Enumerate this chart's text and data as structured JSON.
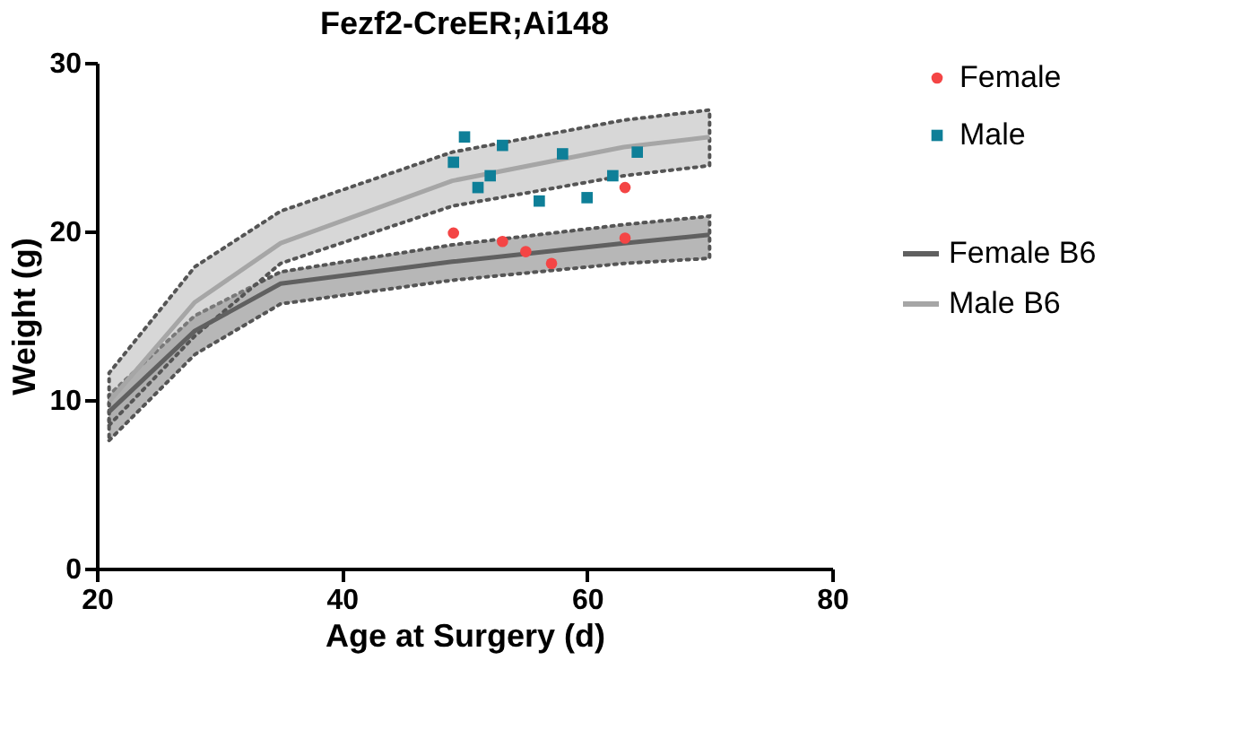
{
  "chart_data": {
    "type": "scatter",
    "title": "Fezf2-CreER;Ai148",
    "xlabel": "Age at Surgery (d)",
    "ylabel": "Weight  (g)",
    "xlim": [
      20,
      80
    ],
    "xticks": [
      20,
      40,
      60,
      80
    ],
    "ylim": [
      0,
      30
    ],
    "yticks": [
      0,
      10,
      20,
      30
    ],
    "grid": false,
    "legend": "right",
    "series": [
      {
        "name": "Female",
        "marker": "circle",
        "color": "#f44545",
        "x": [
          49.1,
          53.1,
          55.0,
          57.1,
          63.1,
          63.1
        ],
        "values": [
          19.9,
          19.4,
          18.8,
          18.1,
          22.6,
          19.6
        ]
      },
      {
        "name": "Male",
        "marker": "square",
        "color": "#0e7f98",
        "x": [
          49.1,
          50.0,
          51.1,
          52.1,
          53.1,
          56.1,
          58.0,
          60.0,
          62.1,
          64.1
        ],
        "values": [
          24.1,
          25.6,
          22.6,
          23.3,
          25.1,
          21.8,
          24.6,
          22.0,
          23.3,
          24.7
        ]
      },
      {
        "name": "Female B6",
        "type": "line",
        "color": "#606060",
        "x": [
          21,
          28,
          35,
          49,
          63,
          70
        ],
        "values": [
          9.3,
          14.1,
          16.9,
          18.2,
          19.3,
          19.8
        ],
        "lower": [
          7.6,
          12.7,
          15.7,
          17.1,
          18.1,
          18.4
        ],
        "upper": [
          10.3,
          15.0,
          17.6,
          19.2,
          20.4,
          20.9
        ]
      },
      {
        "name": "Male B6",
        "type": "line",
        "color": "#a6a6a6",
        "x": [
          21,
          28,
          35,
          49,
          63,
          70
        ],
        "values": [
          9.9,
          15.8,
          19.3,
          23.0,
          25.0,
          25.6
        ],
        "lower": [
          8.5,
          13.8,
          18.1,
          21.5,
          23.3,
          23.9
        ],
        "upper": [
          11.6,
          17.9,
          21.2,
          24.7,
          26.6,
          27.2
        ]
      }
    ]
  }
}
